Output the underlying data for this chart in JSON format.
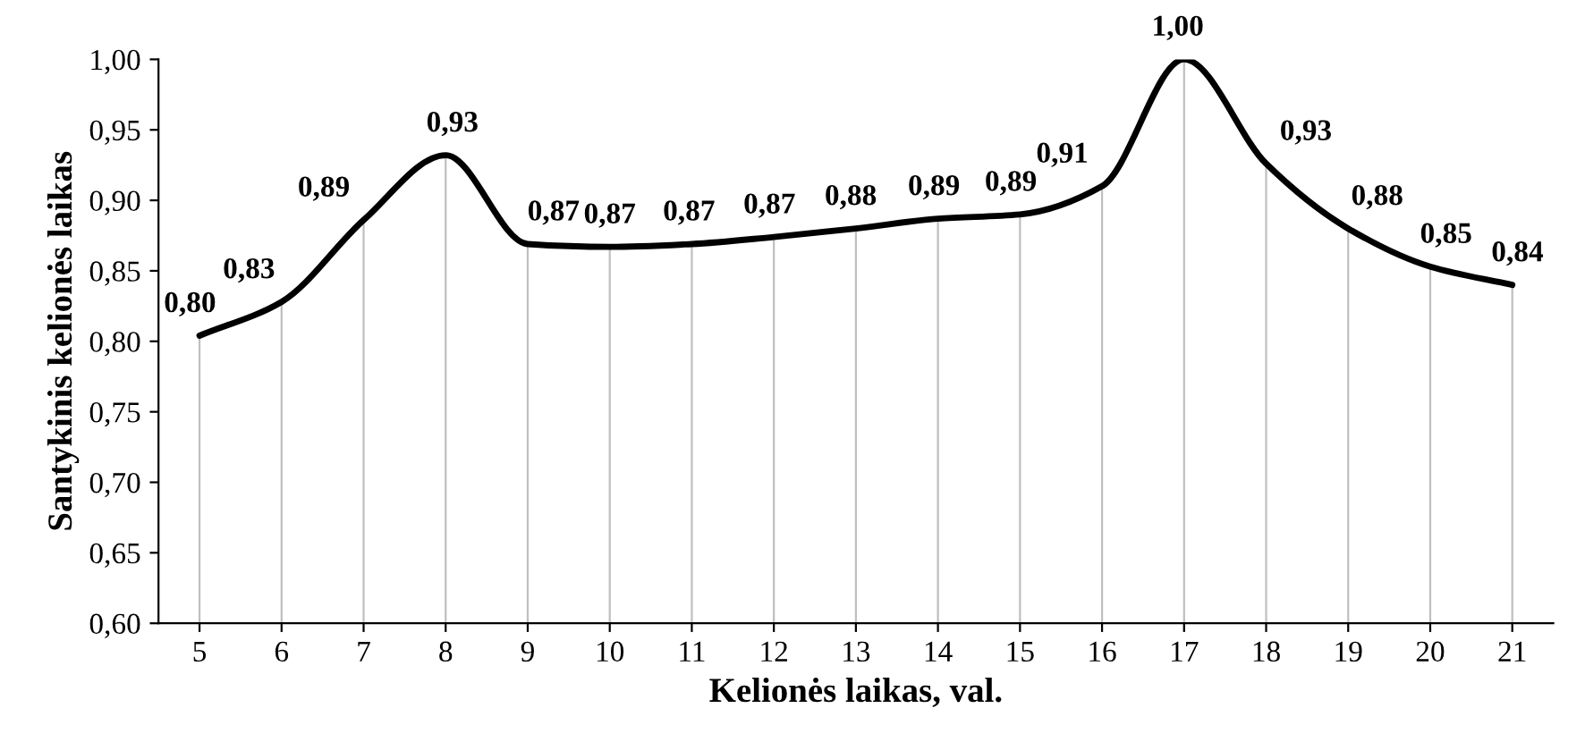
{
  "chart_data": {
    "type": "line",
    "xlabel": "Kelionės laikas, val.",
    "ylabel": "Santykinis kelionės laikas",
    "categories": [
      "5",
      "6",
      "7",
      "8",
      "9",
      "10",
      "11",
      "12",
      "13",
      "14",
      "15",
      "16",
      "17",
      "18",
      "19",
      "20",
      "21"
    ],
    "series": [
      {
        "color": "#000000",
        "values": [
          0.804,
          0.828,
          0.886,
          0.932,
          0.869,
          0.867,
          0.869,
          0.874,
          0.88,
          0.887,
          0.89,
          0.91,
          1.0,
          0.926,
          0.88,
          0.853,
          0.84
        ],
        "value_labels": [
          "0,80",
          "0,83",
          "0,89",
          "0,93",
          "0,87",
          "0,87",
          "0,87",
          "0,87",
          "0,88",
          "0,89",
          "0,89",
          "0,91",
          "1,00",
          "0,93",
          "0,88",
          "0,85",
          "0,84"
        ]
      }
    ],
    "ylim": [
      0.6,
      1.0
    ],
    "yticks": [
      {
        "value": 0.6,
        "label": "0,60"
      },
      {
        "value": 0.65,
        "label": "0,65"
      },
      {
        "value": 0.7,
        "label": "0,70"
      },
      {
        "value": 0.75,
        "label": "0,75"
      },
      {
        "value": 0.8,
        "label": "0,80"
      },
      {
        "value": 0.85,
        "label": "0,85"
      },
      {
        "value": 0.9,
        "label": "0,90"
      },
      {
        "value": 0.95,
        "label": "0,95"
      },
      {
        "value": 1.0,
        "label": "1,00"
      }
    ],
    "grid": "x",
    "marker": "none",
    "line_style": "solid",
    "legend": false
  }
}
